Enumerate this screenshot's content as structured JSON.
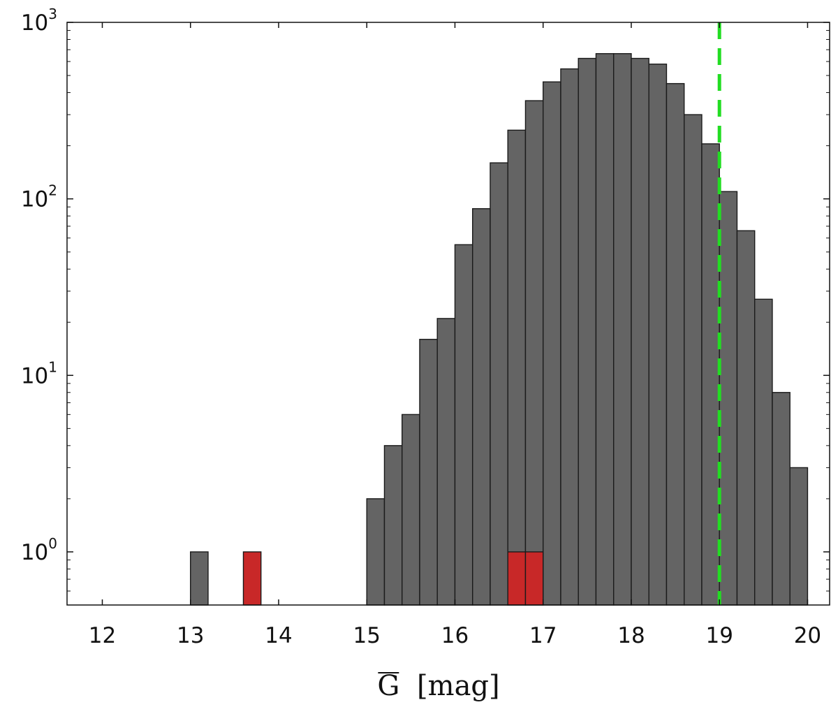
{
  "chart_data": {
    "type": "bar",
    "title": "",
    "xlabel": "G",
    "xlabel_unit": "[mag]",
    "ylabel": "",
    "xscale": "linear",
    "yscale": "log",
    "xlim": [
      11.6,
      20.25
    ],
    "ylim": [
      0.5,
      1000
    ],
    "xticks": [
      12,
      13,
      14,
      15,
      16,
      17,
      18,
      19,
      20
    ],
    "xtick_labels": [
      "12",
      "13",
      "14",
      "15",
      "16",
      "17",
      "18",
      "19",
      "20"
    ],
    "yticks": [
      1,
      10,
      100,
      1000
    ],
    "ytick_labels": [
      {
        "base": "10",
        "exp": "0"
      },
      {
        "base": "10",
        "exp": "1"
      },
      {
        "base": "10",
        "exp": "2"
      },
      {
        "base": "10",
        "exp": "3"
      }
    ],
    "bin_width": 0.2,
    "grid": false,
    "vline": {
      "x": 19.0,
      "style": "dashed",
      "color": "#22dd22"
    },
    "series": [
      {
        "color": "#646464",
        "bars": [
          {
            "x0": 13.0,
            "value": 1
          },
          {
            "x0": 15.0,
            "value": 2
          },
          {
            "x0": 15.2,
            "value": 4
          },
          {
            "x0": 15.4,
            "value": 6
          },
          {
            "x0": 15.6,
            "value": 16
          },
          {
            "x0": 15.8,
            "value": 21
          },
          {
            "x0": 16.0,
            "value": 55
          },
          {
            "x0": 16.2,
            "value": 88
          },
          {
            "x0": 16.4,
            "value": 160
          },
          {
            "x0": 16.6,
            "value": 245
          },
          {
            "x0": 16.8,
            "value": 360
          },
          {
            "x0": 17.0,
            "value": 460
          },
          {
            "x0": 17.2,
            "value": 545
          },
          {
            "x0": 17.4,
            "value": 625
          },
          {
            "x0": 17.6,
            "value": 665
          },
          {
            "x0": 17.8,
            "value": 665
          },
          {
            "x0": 18.0,
            "value": 625
          },
          {
            "x0": 18.2,
            "value": 580
          },
          {
            "x0": 18.4,
            "value": 450
          },
          {
            "x0": 18.6,
            "value": 300
          },
          {
            "x0": 18.8,
            "value": 205
          },
          {
            "x0": 19.0,
            "value": 110
          },
          {
            "x0": 19.2,
            "value": 66
          },
          {
            "x0": 19.4,
            "value": 27
          },
          {
            "x0": 19.6,
            "value": 8
          },
          {
            "x0": 19.8,
            "value": 3
          }
        ]
      },
      {
        "color": "#c82828",
        "bars": [
          {
            "x0": 13.6,
            "value": 1
          },
          {
            "x0": 16.6,
            "value": 1
          },
          {
            "x0": 16.8,
            "value": 1
          }
        ]
      }
    ]
  }
}
